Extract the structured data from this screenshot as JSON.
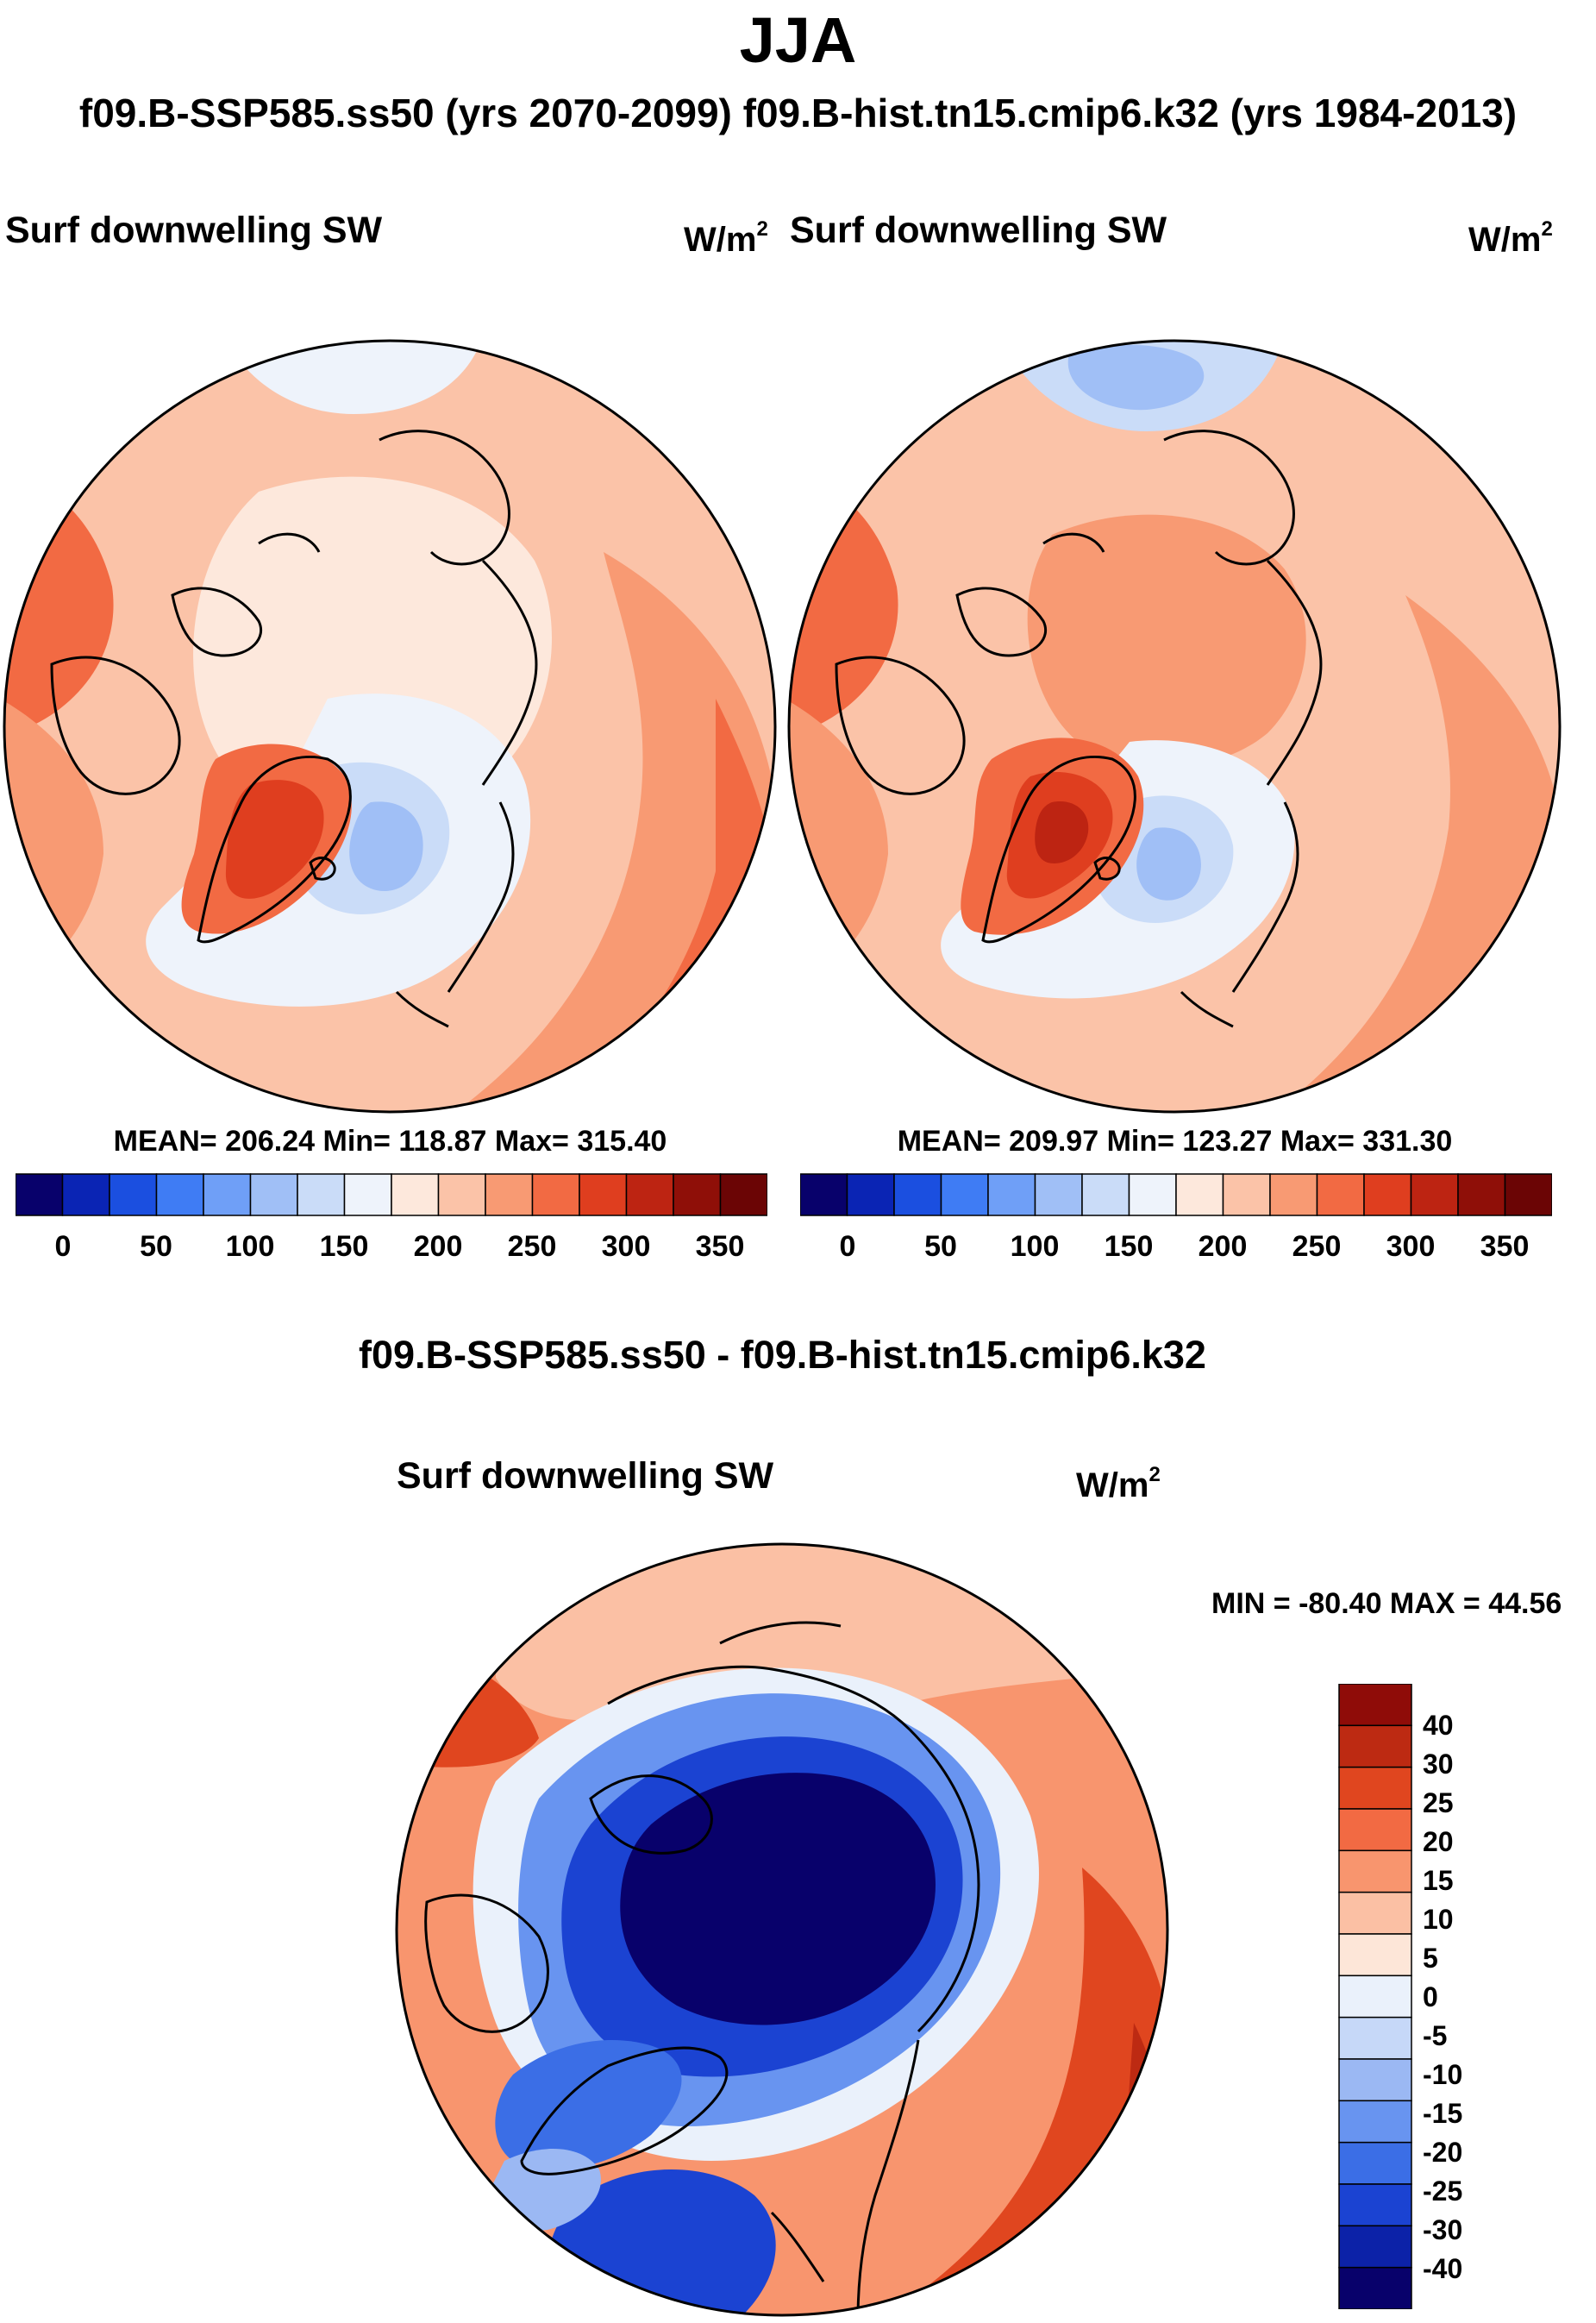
{
  "title": "JJA",
  "subtitle": "f09.B-SSP585.ss50 (yrs 2070-2099)  f09.B-hist.tn15.cmip6.k32 (yrs 1984-2013)",
  "colors": {
    "abs": [
      "#08016b",
      "#0a24b4",
      "#1b4fe0",
      "#3f7cf4",
      "#6f9ff7",
      "#a0bff6",
      "#cadcf8",
      "#eef3fb",
      "#fde8dc",
      "#fbc3a8",
      "#f89a73",
      "#f26a43",
      "#df3e1f",
      "#bd2412",
      "#8f0f08",
      "#6b0505"
    ],
    "diff": [
      "#08016b",
      "#0c22a8",
      "#1b43d2",
      "#3b6ee6",
      "#6894f0",
      "#9bb8f3",
      "#c6d8f8",
      "#eaf1fb",
      "#fde6d8",
      "#fbc0a4",
      "#f8956e",
      "#f26a43",
      "#e0461f",
      "#bd2a12",
      "#8f0c08"
    ]
  },
  "panels": [
    {
      "id": "future",
      "title": "Surf downwelling SW",
      "units_base": "W/m",
      "units_exp": "2",
      "stats": "MEAN= 206.24  Min= 118.87  Max= 315.40",
      "colorbar_labels": [
        "0",
        "50",
        "100",
        "150",
        "200",
        "250",
        "300",
        "350"
      ]
    },
    {
      "id": "historical",
      "title": "Surf downwelling SW",
      "units_base": "W/m",
      "units_exp": "2",
      "stats": "MEAN= 209.97  Min= 123.27  Max= 331.30",
      "colorbar_labels": [
        "0",
        "50",
        "100",
        "150",
        "200",
        "250",
        "300",
        "350"
      ]
    }
  ],
  "difference": {
    "header": "f09.B-SSP585.ss50 - f09.B-hist.tn15.cmip6.k32",
    "title": "Surf downwelling SW",
    "units_base": "W/m",
    "units_exp": "2",
    "minmax": "MIN = -80.40 MAX =  44.56",
    "colorbar_labels": [
      "40",
      "30",
      "25",
      "20",
      "15",
      "10",
      "5",
      "0",
      "-5",
      "-10",
      "-15",
      "-20",
      "-25",
      "-30",
      "-40"
    ]
  }
}
